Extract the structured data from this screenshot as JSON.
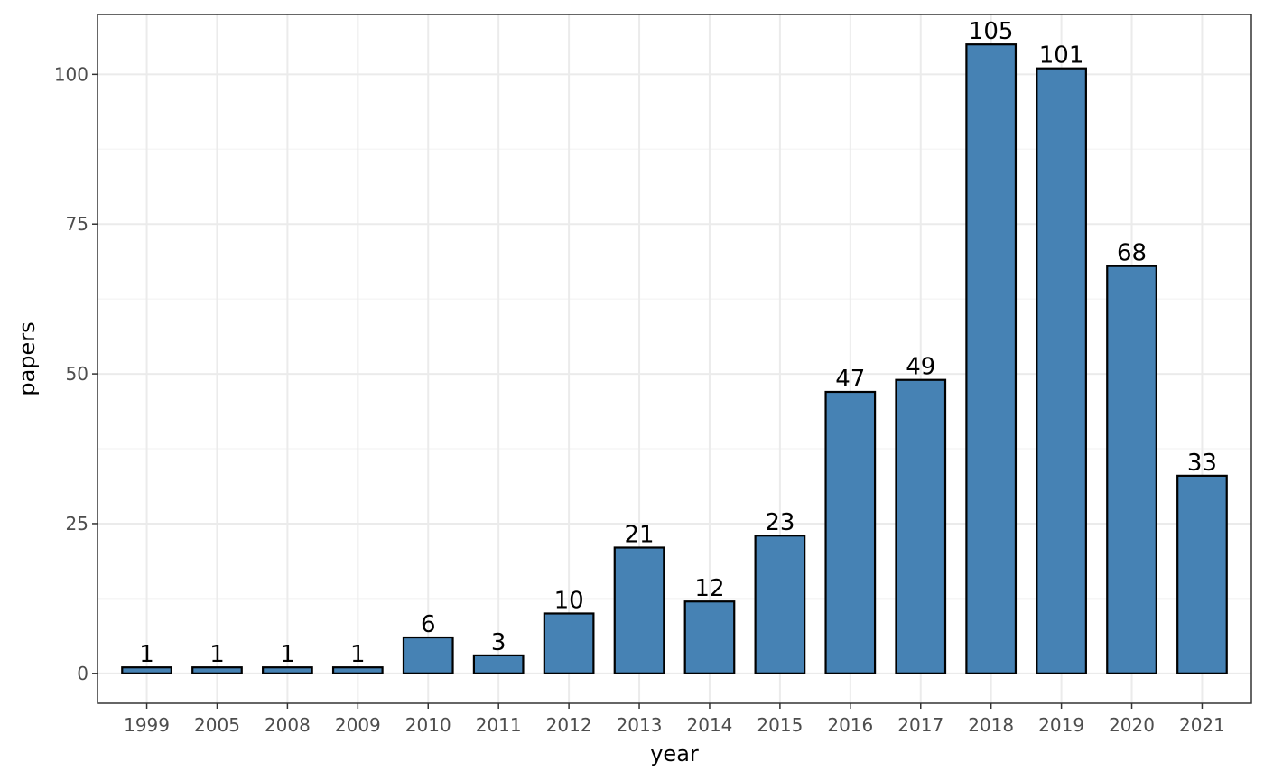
{
  "chart_data": {
    "type": "bar",
    "categories": [
      "1999",
      "2005",
      "2008",
      "2009",
      "2010",
      "2011",
      "2012",
      "2013",
      "2014",
      "2015",
      "2016",
      "2017",
      "2018",
      "2019",
      "2020",
      "2021"
    ],
    "values": [
      1,
      1,
      1,
      1,
      6,
      3,
      10,
      21,
      12,
      23,
      47,
      49,
      105,
      101,
      68,
      33
    ],
    "xlabel": "year",
    "ylabel": "papers",
    "ylim": [
      -5,
      110
    ],
    "yticks": [
      0,
      25,
      50,
      75,
      100
    ],
    "grid": true,
    "bar_data_labels": true,
    "legend": "none"
  },
  "colors": {
    "bar_fill": "#4682b4",
    "bar_stroke": "#000000",
    "grid_major": "#ebebeb",
    "grid_minor": "#f4f4f4",
    "panel_border": "#333333"
  }
}
